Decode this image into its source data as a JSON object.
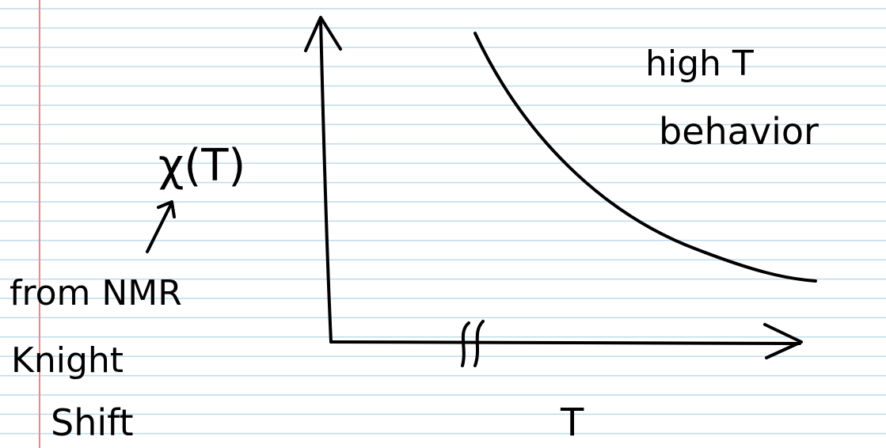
{
  "axes": {
    "y_label": "χ(T)",
    "x_label": "T"
  },
  "annotations": {
    "source": [
      "from NMR",
      "Knight",
      "Shift"
    ],
    "curve_label": [
      "high T",
      "behavior"
    ]
  }
}
